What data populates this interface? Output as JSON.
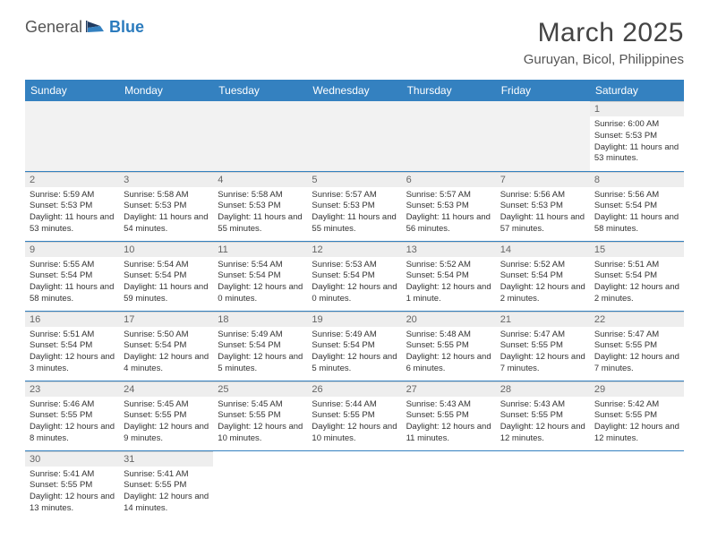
{
  "logo": {
    "text1": "General",
    "text2": "Blue"
  },
  "title": "March 2025",
  "location": "Guruyan, Bicol, Philippines",
  "colors": {
    "header_bg": "#3481c0",
    "header_text": "#ffffff",
    "day_num_bg": "#eeeeee",
    "row_border": "#3481c0",
    "logo_blue": "#2b7bbd"
  },
  "weekdays": [
    "Sunday",
    "Monday",
    "Tuesday",
    "Wednesday",
    "Thursday",
    "Friday",
    "Saturday"
  ],
  "weeks": [
    [
      null,
      null,
      null,
      null,
      null,
      null,
      {
        "d": "1",
        "sr": "Sunrise: 6:00 AM",
        "ss": "Sunset: 5:53 PM",
        "dl": "Daylight: 11 hours and 53 minutes."
      }
    ],
    [
      {
        "d": "2",
        "sr": "Sunrise: 5:59 AM",
        "ss": "Sunset: 5:53 PM",
        "dl": "Daylight: 11 hours and 53 minutes."
      },
      {
        "d": "3",
        "sr": "Sunrise: 5:58 AM",
        "ss": "Sunset: 5:53 PM",
        "dl": "Daylight: 11 hours and 54 minutes."
      },
      {
        "d": "4",
        "sr": "Sunrise: 5:58 AM",
        "ss": "Sunset: 5:53 PM",
        "dl": "Daylight: 11 hours and 55 minutes."
      },
      {
        "d": "5",
        "sr": "Sunrise: 5:57 AM",
        "ss": "Sunset: 5:53 PM",
        "dl": "Daylight: 11 hours and 55 minutes."
      },
      {
        "d": "6",
        "sr": "Sunrise: 5:57 AM",
        "ss": "Sunset: 5:53 PM",
        "dl": "Daylight: 11 hours and 56 minutes."
      },
      {
        "d": "7",
        "sr": "Sunrise: 5:56 AM",
        "ss": "Sunset: 5:53 PM",
        "dl": "Daylight: 11 hours and 57 minutes."
      },
      {
        "d": "8",
        "sr": "Sunrise: 5:56 AM",
        "ss": "Sunset: 5:54 PM",
        "dl": "Daylight: 11 hours and 58 minutes."
      }
    ],
    [
      {
        "d": "9",
        "sr": "Sunrise: 5:55 AM",
        "ss": "Sunset: 5:54 PM",
        "dl": "Daylight: 11 hours and 58 minutes."
      },
      {
        "d": "10",
        "sr": "Sunrise: 5:54 AM",
        "ss": "Sunset: 5:54 PM",
        "dl": "Daylight: 11 hours and 59 minutes."
      },
      {
        "d": "11",
        "sr": "Sunrise: 5:54 AM",
        "ss": "Sunset: 5:54 PM",
        "dl": "Daylight: 12 hours and 0 minutes."
      },
      {
        "d": "12",
        "sr": "Sunrise: 5:53 AM",
        "ss": "Sunset: 5:54 PM",
        "dl": "Daylight: 12 hours and 0 minutes."
      },
      {
        "d": "13",
        "sr": "Sunrise: 5:52 AM",
        "ss": "Sunset: 5:54 PM",
        "dl": "Daylight: 12 hours and 1 minute."
      },
      {
        "d": "14",
        "sr": "Sunrise: 5:52 AM",
        "ss": "Sunset: 5:54 PM",
        "dl": "Daylight: 12 hours and 2 minutes."
      },
      {
        "d": "15",
        "sr": "Sunrise: 5:51 AM",
        "ss": "Sunset: 5:54 PM",
        "dl": "Daylight: 12 hours and 2 minutes."
      }
    ],
    [
      {
        "d": "16",
        "sr": "Sunrise: 5:51 AM",
        "ss": "Sunset: 5:54 PM",
        "dl": "Daylight: 12 hours and 3 minutes."
      },
      {
        "d": "17",
        "sr": "Sunrise: 5:50 AM",
        "ss": "Sunset: 5:54 PM",
        "dl": "Daylight: 12 hours and 4 minutes."
      },
      {
        "d": "18",
        "sr": "Sunrise: 5:49 AM",
        "ss": "Sunset: 5:54 PM",
        "dl": "Daylight: 12 hours and 5 minutes."
      },
      {
        "d": "19",
        "sr": "Sunrise: 5:49 AM",
        "ss": "Sunset: 5:54 PM",
        "dl": "Daylight: 12 hours and 5 minutes."
      },
      {
        "d": "20",
        "sr": "Sunrise: 5:48 AM",
        "ss": "Sunset: 5:55 PM",
        "dl": "Daylight: 12 hours and 6 minutes."
      },
      {
        "d": "21",
        "sr": "Sunrise: 5:47 AM",
        "ss": "Sunset: 5:55 PM",
        "dl": "Daylight: 12 hours and 7 minutes."
      },
      {
        "d": "22",
        "sr": "Sunrise: 5:47 AM",
        "ss": "Sunset: 5:55 PM",
        "dl": "Daylight: 12 hours and 7 minutes."
      }
    ],
    [
      {
        "d": "23",
        "sr": "Sunrise: 5:46 AM",
        "ss": "Sunset: 5:55 PM",
        "dl": "Daylight: 12 hours and 8 minutes."
      },
      {
        "d": "24",
        "sr": "Sunrise: 5:45 AM",
        "ss": "Sunset: 5:55 PM",
        "dl": "Daylight: 12 hours and 9 minutes."
      },
      {
        "d": "25",
        "sr": "Sunrise: 5:45 AM",
        "ss": "Sunset: 5:55 PM",
        "dl": "Daylight: 12 hours and 10 minutes."
      },
      {
        "d": "26",
        "sr": "Sunrise: 5:44 AM",
        "ss": "Sunset: 5:55 PM",
        "dl": "Daylight: 12 hours and 10 minutes."
      },
      {
        "d": "27",
        "sr": "Sunrise: 5:43 AM",
        "ss": "Sunset: 5:55 PM",
        "dl": "Daylight: 12 hours and 11 minutes."
      },
      {
        "d": "28",
        "sr": "Sunrise: 5:43 AM",
        "ss": "Sunset: 5:55 PM",
        "dl": "Daylight: 12 hours and 12 minutes."
      },
      {
        "d": "29",
        "sr": "Sunrise: 5:42 AM",
        "ss": "Sunset: 5:55 PM",
        "dl": "Daylight: 12 hours and 12 minutes."
      }
    ],
    [
      {
        "d": "30",
        "sr": "Sunrise: 5:41 AM",
        "ss": "Sunset: 5:55 PM",
        "dl": "Daylight: 12 hours and 13 minutes."
      },
      {
        "d": "31",
        "sr": "Sunrise: 5:41 AM",
        "ss": "Sunset: 5:55 PM",
        "dl": "Daylight: 12 hours and 14 minutes."
      },
      null,
      null,
      null,
      null,
      null
    ]
  ]
}
